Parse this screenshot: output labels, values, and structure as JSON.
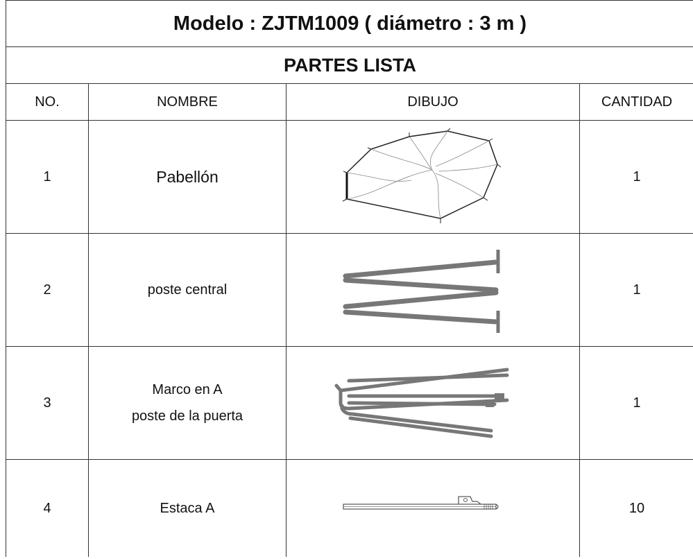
{
  "header": {
    "title": "Modelo : ZJTM1009 ( diámetro : 3 m )",
    "subtitle": "PARTES LISTA"
  },
  "table": {
    "columns": [
      "NO.",
      "NOMBRE",
      "DIBUJO",
      "CANTIDAD"
    ],
    "rows": [
      {
        "no": 1,
        "name": [
          "Pabellón"
        ],
        "quantity": 1
      },
      {
        "no": 2,
        "name": [
          "poste central"
        ],
        "quantity": 1
      },
      {
        "no": 3,
        "name": [
          "Marco en A",
          "poste de la puerta"
        ],
        "quantity": 1
      },
      {
        "no": 4,
        "name": [
          "Estaca A"
        ],
        "quantity": 10
      }
    ]
  }
}
